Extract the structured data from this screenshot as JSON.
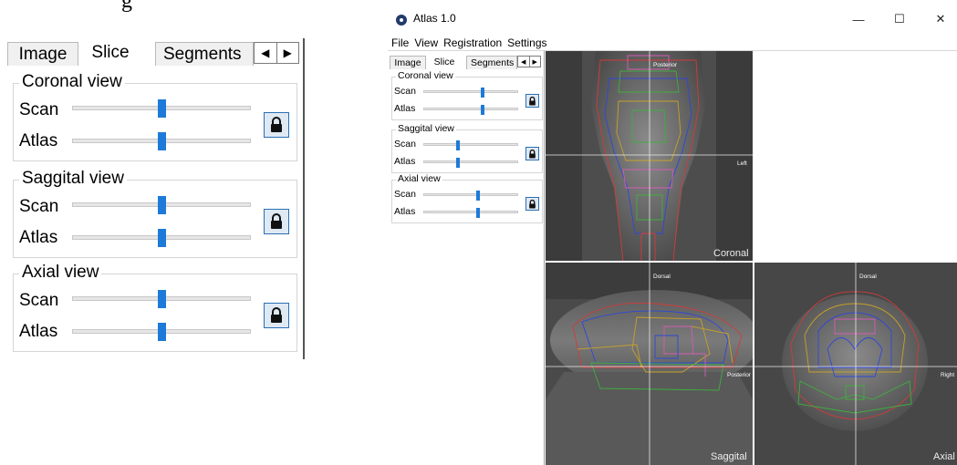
{
  "zoom": {
    "caption_fragment": "g",
    "tabs": [
      "Image",
      "Slice",
      "Segments"
    ],
    "active_tab": "Slice",
    "groups": [
      {
        "title": "Coronal view",
        "scan_label": "Scan",
        "atlas_label": "Atlas",
        "scan_pos": 0.5,
        "atlas_pos": 0.5
      },
      {
        "title": "Saggital view",
        "scan_label": "Scan",
        "atlas_label": "Atlas",
        "scan_pos": 0.5,
        "atlas_pos": 0.5
      },
      {
        "title": "Axial view",
        "scan_label": "Scan",
        "atlas_label": "Atlas",
        "scan_pos": 0.5,
        "atlas_pos": 0.5
      }
    ]
  },
  "app": {
    "title": "Atlas 1.0",
    "window_buttons": {
      "minimize": "—",
      "maximize": "☐",
      "close": "✕"
    },
    "menu": [
      "File",
      "View",
      "Registration",
      "Settings"
    ],
    "tabs": [
      "Image",
      "Slice",
      "Segments"
    ],
    "active_tab": "Slice",
    "groups": [
      {
        "title": "Coronal view",
        "scan_label": "Scan",
        "atlas_label": "Atlas",
        "scan_pos": 0.63,
        "atlas_pos": 0.63
      },
      {
        "title": "Saggital view",
        "scan_label": "Scan",
        "atlas_label": "Atlas",
        "scan_pos": 0.36,
        "atlas_pos": 0.36
      },
      {
        "title": "Axial view",
        "scan_label": "Scan",
        "atlas_label": "Atlas",
        "scan_pos": 0.58,
        "atlas_pos": 0.58
      }
    ],
    "viewports": {
      "coronal": {
        "name": "Coronal",
        "top_label": "Posterior",
        "right_label": "Left"
      },
      "sagittal": {
        "name": "Saggital",
        "top_label": "Dorsal",
        "right_label": "Posterior"
      },
      "axial": {
        "name": "Axial",
        "top_label": "Dorsal",
        "right_label": "Right"
      }
    },
    "overlay_colors": [
      "#d23b3b",
      "#2f47d6",
      "#c7a12a",
      "#3fae3f",
      "#d35db5"
    ]
  }
}
